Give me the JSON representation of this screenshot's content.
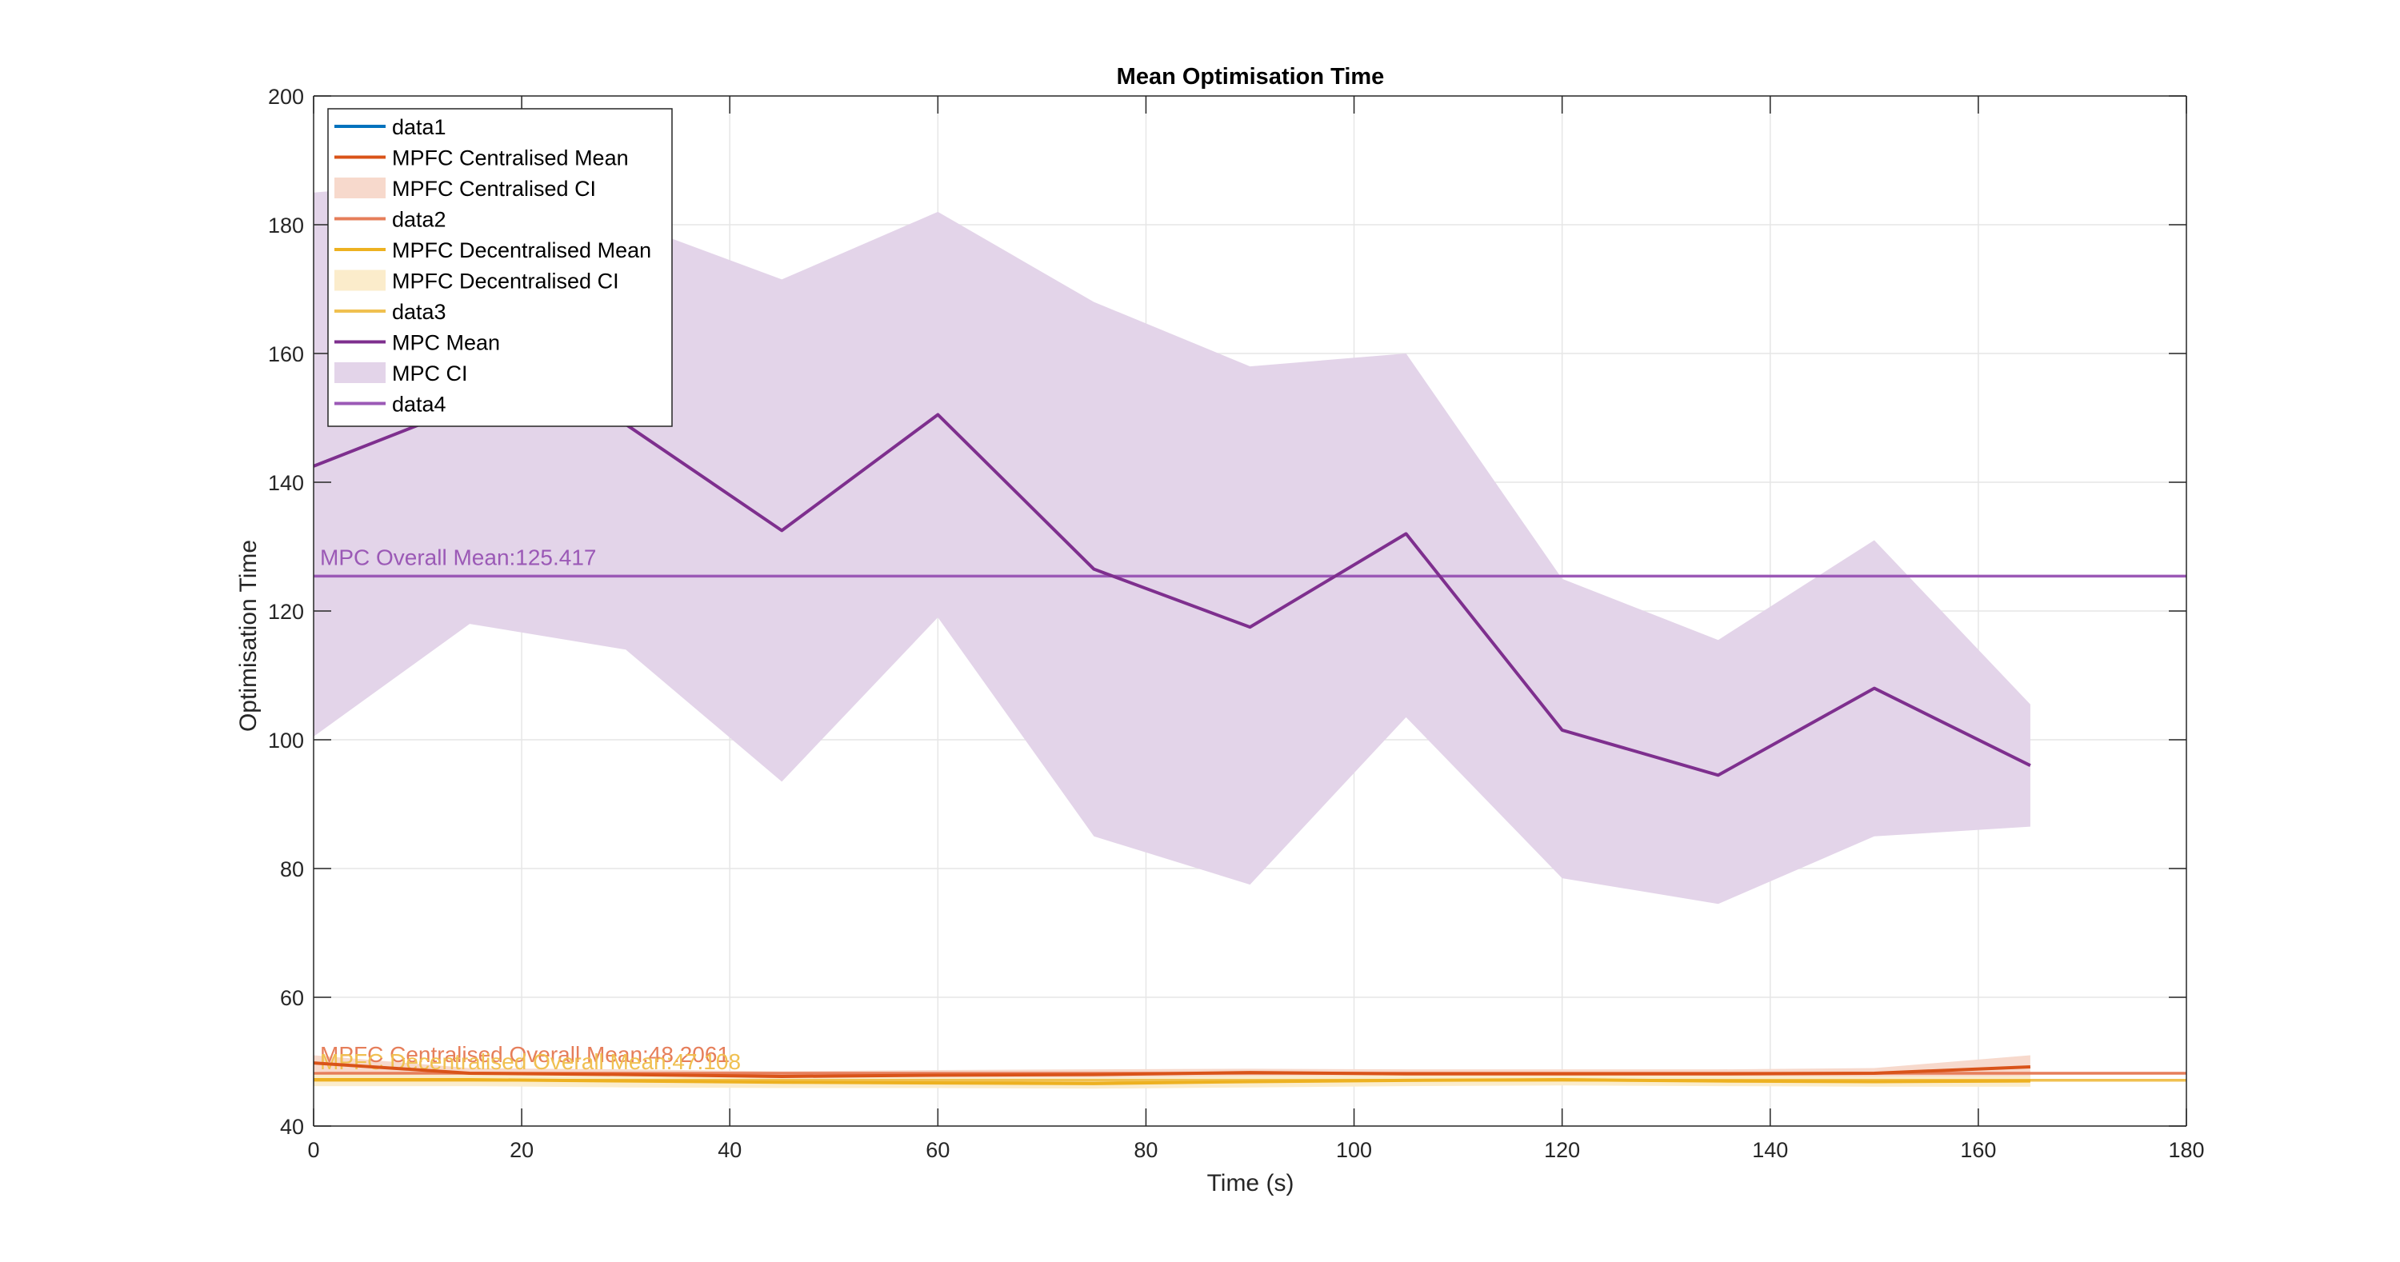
{
  "chart_data": {
    "type": "line",
    "title": "Mean Optimisation Time",
    "xlabel": "Time (s)",
    "ylabel": "Optimisation Time",
    "xlim": [
      0,
      180
    ],
    "ylim": [
      40,
      200
    ],
    "xticks": [
      0,
      20,
      40,
      60,
      80,
      100,
      120,
      140,
      160,
      180
    ],
    "yticks": [
      40,
      60,
      80,
      100,
      120,
      140,
      160,
      180,
      200
    ],
    "grid": true,
    "legend_position": "top-left",
    "x": [
      0,
      15,
      30,
      45,
      60,
      75,
      90,
      105,
      120,
      135,
      150,
      165
    ],
    "bands": [
      {
        "name": "MPC CI",
        "color": "#e3d4e9",
        "upper": [
          185.0,
          187.0,
          180.5,
          171.5,
          182.0,
          168.0,
          158.0,
          160.0,
          125.0,
          115.5,
          131.0,
          105.5
        ],
        "lower": [
          100.5,
          118.0,
          114.0,
          93.5,
          119.0,
          85.0,
          77.5,
          103.5,
          78.5,
          74.5,
          85.0,
          86.5
        ]
      },
      {
        "name": "MPFC Centralised CI",
        "color": "#f7d9cc",
        "upper": [
          51.0,
          49.0,
          48.8,
          48.5,
          48.7,
          48.8,
          48.9,
          48.8,
          48.8,
          48.8,
          49.0,
          51.0
        ],
        "lower": [
          48.5,
          47.5,
          47.4,
          47.2,
          47.4,
          47.5,
          47.6,
          47.5,
          47.5,
          47.5,
          47.6,
          47.5
        ]
      },
      {
        "name": "MPFC Decentralised CI",
        "color": "#fbeccb",
        "upper": [
          48.2,
          48.0,
          47.9,
          47.7,
          47.6,
          47.6,
          47.8,
          47.9,
          47.9,
          47.8,
          47.7,
          47.8
        ],
        "lower": [
          46.2,
          46.2,
          46.0,
          45.9,
          45.9,
          45.8,
          46.0,
          46.2,
          46.3,
          46.2,
          46.1,
          46.1
        ]
      }
    ],
    "series": [
      {
        "name": "MPFC Decentralised Mean",
        "color": "#edb120",
        "values": [
          47.2,
          47.2,
          47.0,
          46.8,
          46.7,
          46.6,
          46.9,
          47.1,
          47.2,
          47.0,
          46.9,
          47.0
        ]
      },
      {
        "name": "MPFC Centralised Mean",
        "color": "#d95319",
        "values": [
          49.8,
          48.2,
          48.0,
          47.7,
          47.9,
          48.0,
          48.3,
          48.1,
          48.1,
          48.1,
          48.2,
          49.2
        ]
      },
      {
        "name": "MPC Mean",
        "color": "#7e2f8e",
        "values": [
          142.5,
          152.0,
          149.0,
          132.5,
          150.5,
          126.5,
          117.5,
          132.0,
          101.5,
          94.5,
          108.0,
          96.0
        ]
      }
    ],
    "reference_lines": [
      {
        "name": "data4",
        "color": "#9b59b6",
        "y": 125.417,
        "label": "MPC Overall Mean:125.417"
      },
      {
        "name": "data2",
        "color": "#e67e5a",
        "y": 48.2061,
        "label": "MPFC Centralised Overall Mean:48.2061"
      },
      {
        "name": "data3",
        "color": "#f0c050",
        "y": 47.108,
        "label": "MPFC Decentralised Overall Mean:47.108"
      }
    ],
    "legend": [
      {
        "label": "data1",
        "kind": "line",
        "color": "#0072bd"
      },
      {
        "label": "MPFC Centralised Mean",
        "kind": "line",
        "color": "#d95319"
      },
      {
        "label": "MPFC Centralised CI",
        "kind": "patch",
        "color": "#f7d9cc"
      },
      {
        "label": "data2",
        "kind": "line",
        "color": "#e67e5a"
      },
      {
        "label": "MPFC Decentralised Mean",
        "kind": "line",
        "color": "#edb120"
      },
      {
        "label": "MPFC Decentralised CI",
        "kind": "patch",
        "color": "#fbeccb"
      },
      {
        "label": "data3",
        "kind": "line",
        "color": "#f0c050"
      },
      {
        "label": "MPC Mean",
        "kind": "line",
        "color": "#7e2f8e"
      },
      {
        "label": "MPC CI",
        "kind": "patch",
        "color": "#e3d4e9"
      },
      {
        "label": "data4",
        "kind": "line",
        "color": "#9b59b6"
      }
    ]
  }
}
